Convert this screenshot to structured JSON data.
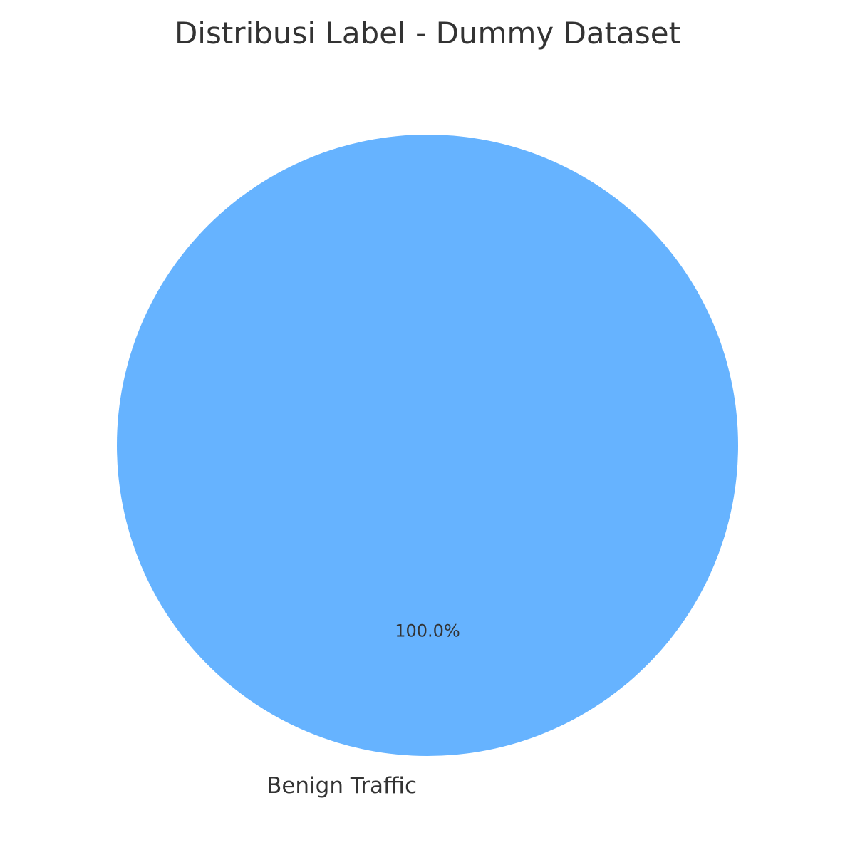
{
  "chart_data": {
    "type": "pie",
    "title": "Distribusi Label - Dummy Dataset",
    "categories": [
      "Benign Traffic"
    ],
    "values": [
      100
    ],
    "percent_labels": [
      "100.0%"
    ],
    "colors": [
      "#66b3ff"
    ],
    "legend": "none"
  }
}
